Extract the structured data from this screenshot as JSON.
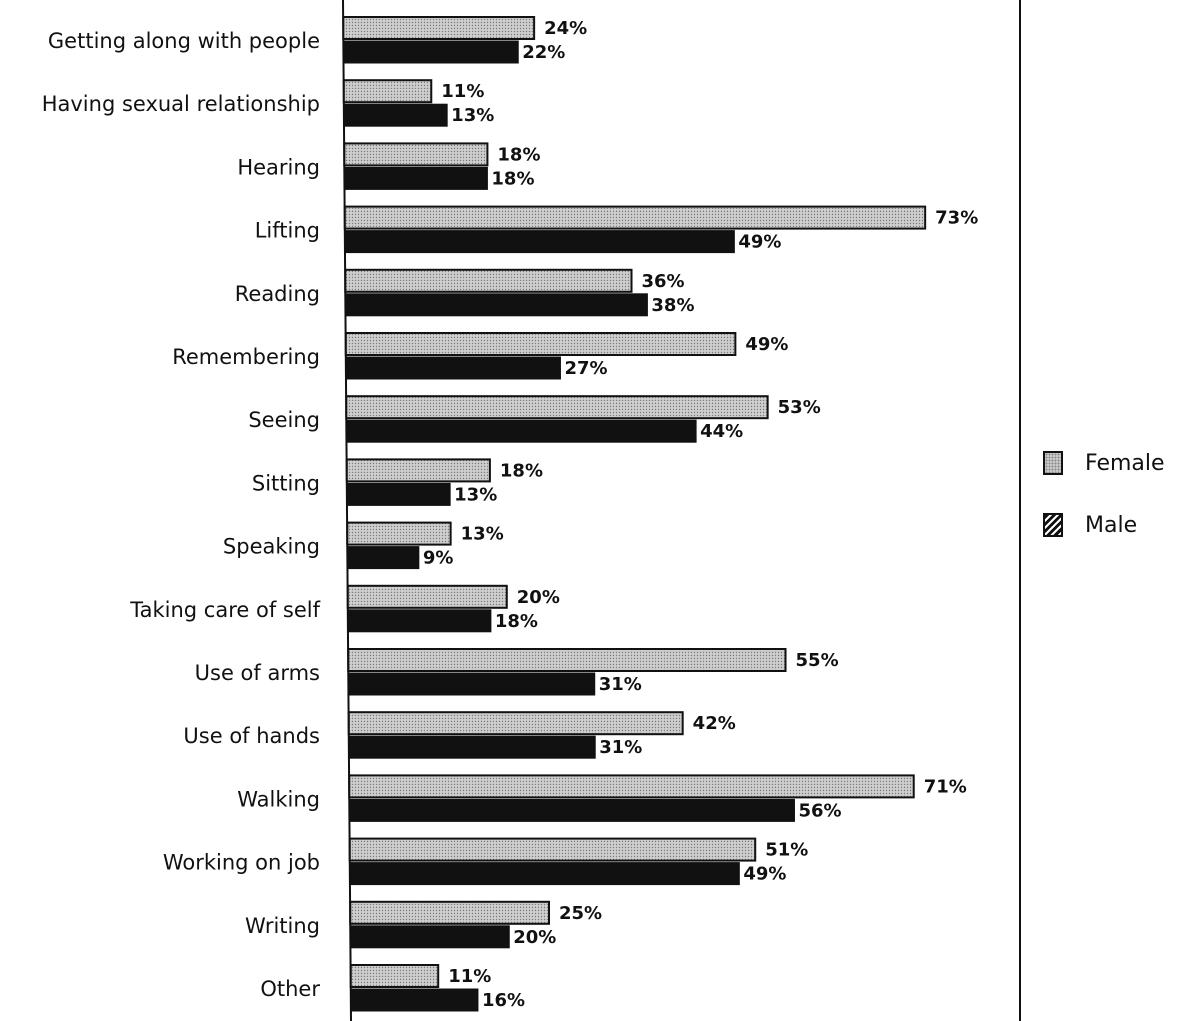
{
  "chart_data": {
    "type": "bar",
    "orientation": "horizontal",
    "categories": [
      "Getting along with people",
      "Having sexual relationship",
      "Hearing",
      "Lifting",
      "Reading",
      "Remembering",
      "Seeing",
      "Sitting",
      "Speaking",
      "Taking care of self",
      "Use of arms",
      "Use of hands",
      "Walking",
      "Working on job",
      "Writing",
      "Other"
    ],
    "series": [
      {
        "name": "Female",
        "values": [
          24,
          11,
          18,
          73,
          36,
          49,
          53,
          18,
          13,
          20,
          55,
          42,
          71,
          51,
          25,
          11
        ],
        "labels": [
          "24%",
          "11%",
          "18%",
          "73%",
          "36%",
          "49%",
          "53%",
          "18%",
          "13%",
          "20%",
          "55%",
          "42%",
          "71%",
          "51%",
          "25%",
          "11%"
        ],
        "color": "#c9c9c9"
      },
      {
        "name": "Male",
        "values": [
          22,
          13,
          18,
          49,
          38,
          27,
          44,
          13,
          9,
          18,
          31,
          31,
          56,
          49,
          20,
          16
        ],
        "labels": [
          "22%",
          "13%",
          "18%",
          "49%",
          "38%",
          "27%",
          "44%",
          "13%",
          "9%",
          "18%",
          "31%",
          "31%",
          "56%",
          "49%",
          "20%",
          "16%"
        ],
        "color": "#111111"
      }
    ],
    "xlim": [
      0,
      85
    ],
    "title": "",
    "xlabel": "",
    "ylabel": "",
    "grid": false,
    "legend_position": "right"
  },
  "legend": {
    "female": "Female",
    "male": "Male"
  }
}
